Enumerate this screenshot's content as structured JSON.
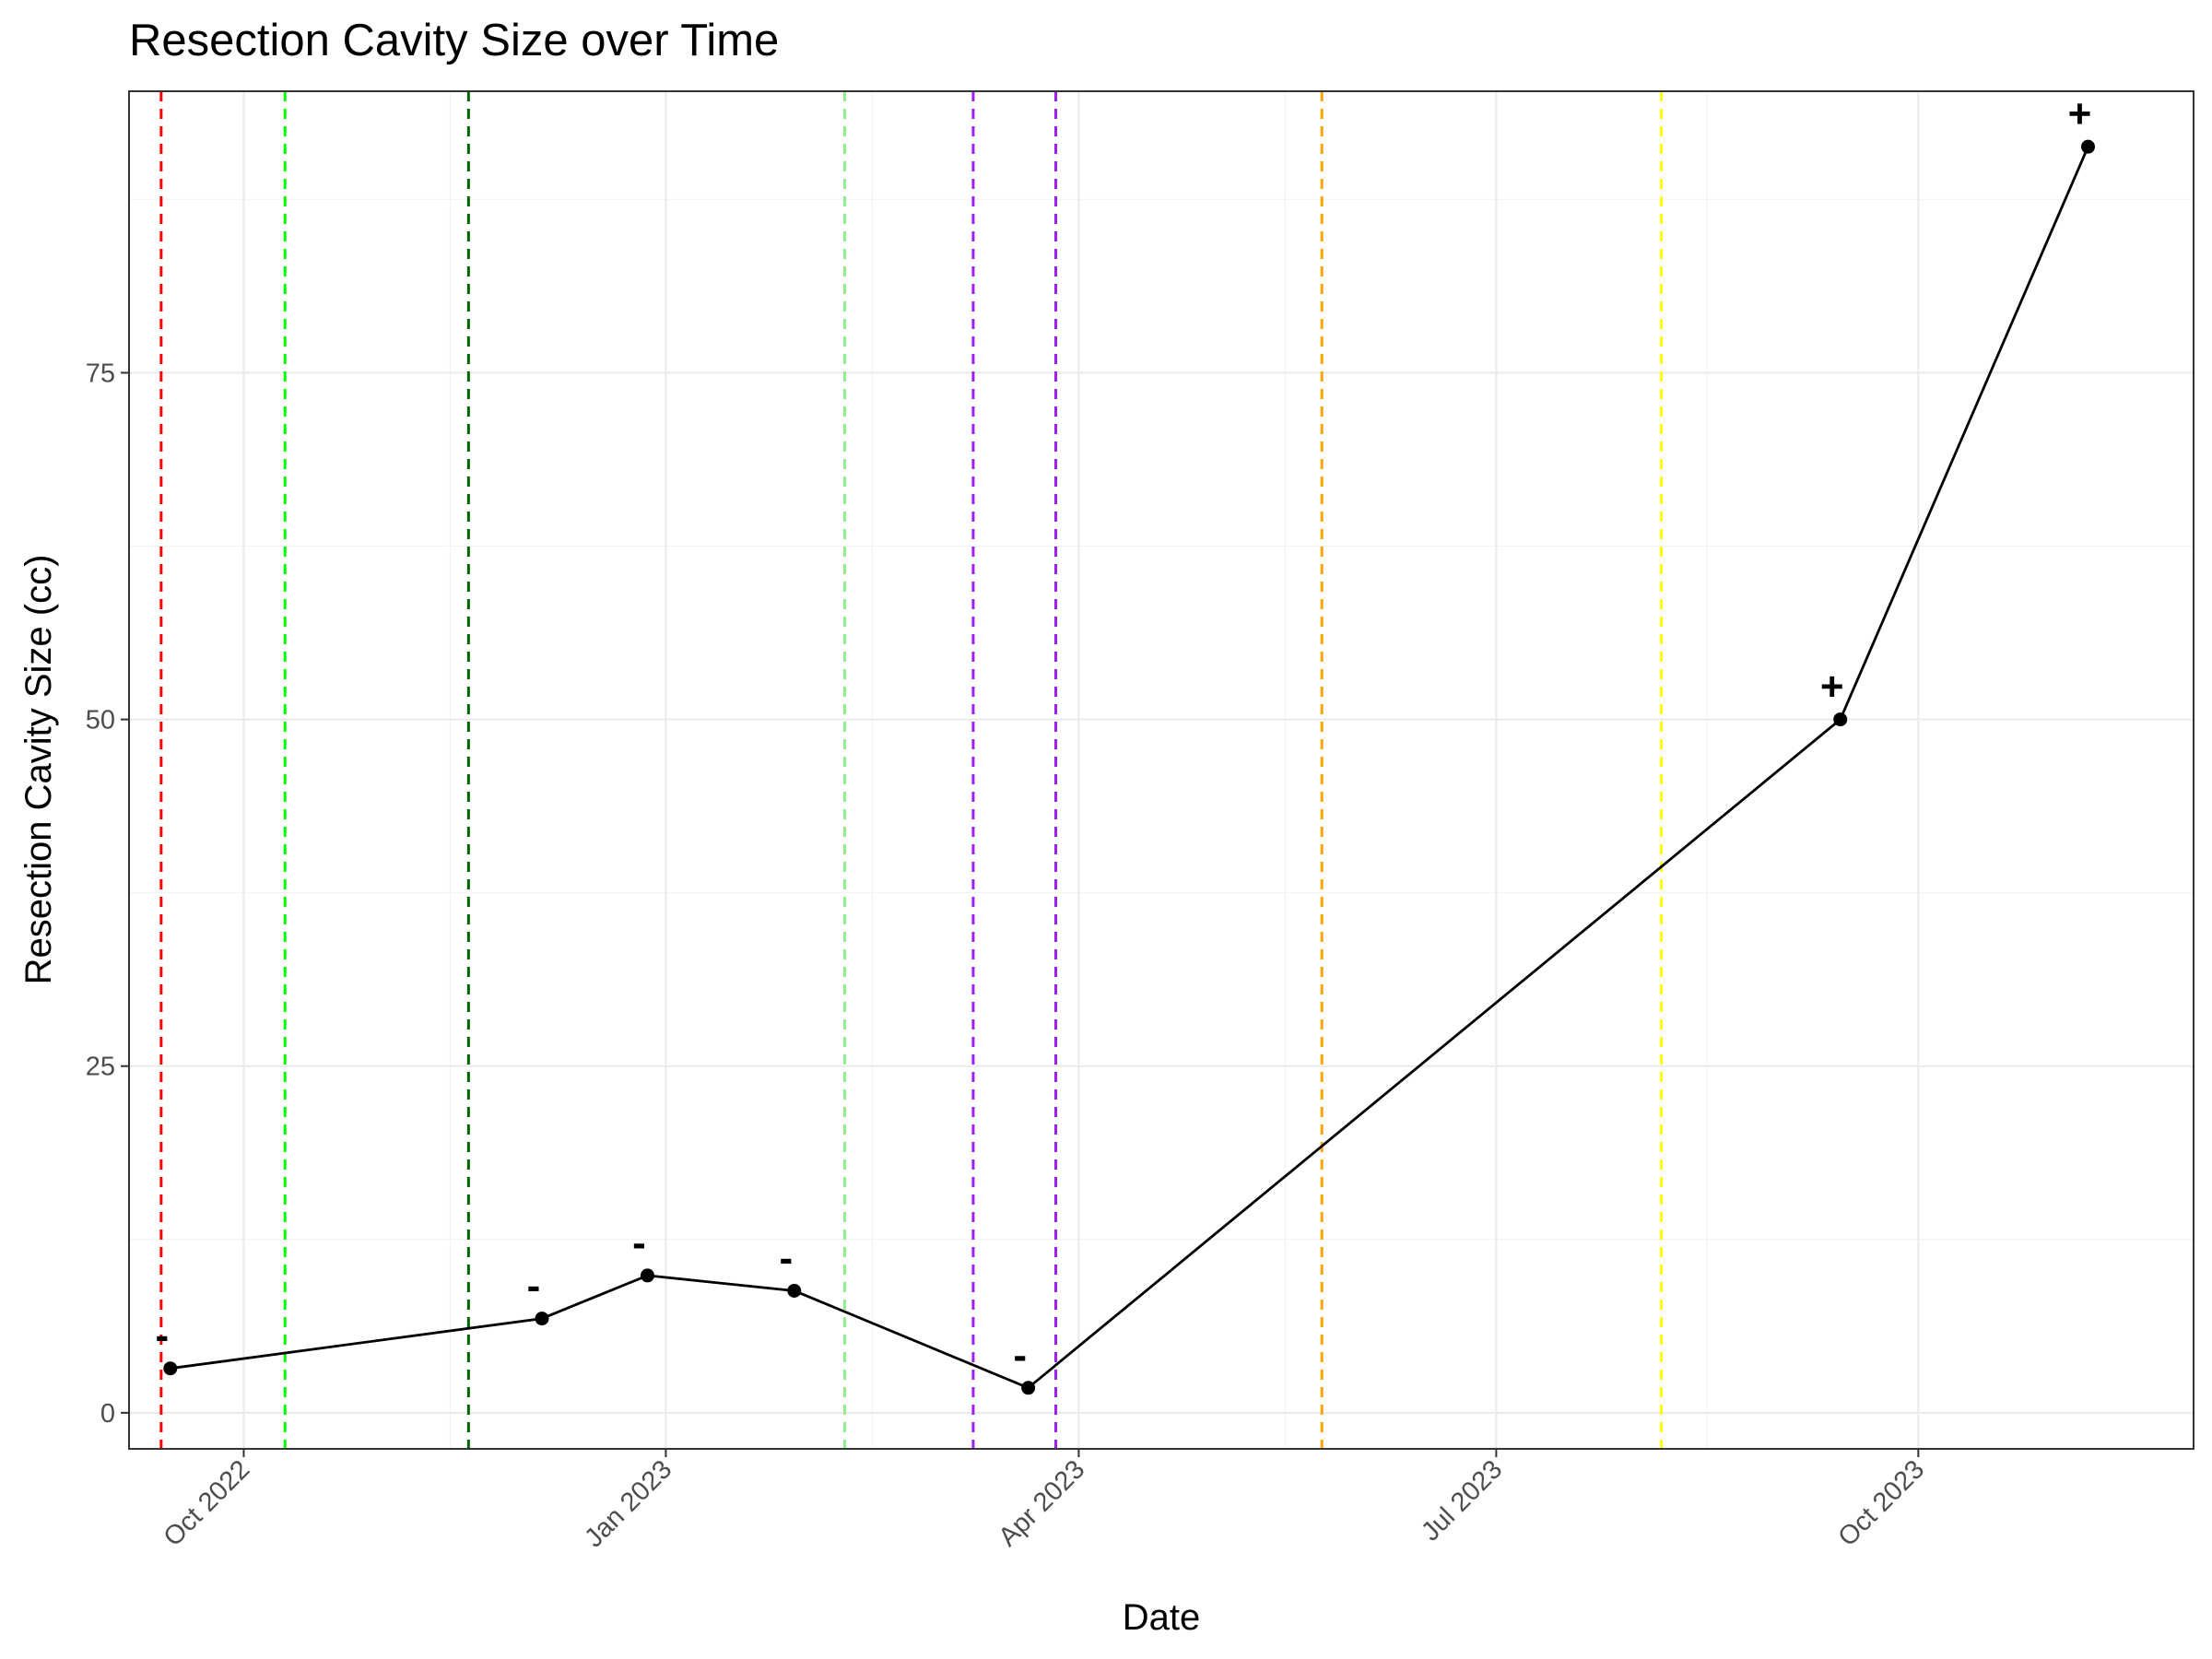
{
  "chart_data": {
    "type": "line",
    "title": "Resection Cavity Size over Time",
    "xlabel": "Date",
    "ylabel": "Resection Cavity Size (cc)",
    "x_type": "date",
    "xlim": [
      "2022-09-06",
      "2023-11-30"
    ],
    "ylim": [
      -2.6,
      95.3
    ],
    "x_ticks": [
      {
        "date": "2022-10-01",
        "label": "Oct 2022"
      },
      {
        "date": "2023-01-01",
        "label": "Jan 2023"
      },
      {
        "date": "2023-04-01",
        "label": "Apr 2023"
      },
      {
        "date": "2023-07-01",
        "label": "Jul 2023"
      },
      {
        "date": "2023-10-01",
        "label": "Oct 2023"
      }
    ],
    "x_minor_ticks": [
      "2022-11-15",
      "2023-02-15",
      "2023-05-16",
      "2023-08-16"
    ],
    "y_ticks": [
      0,
      25,
      50,
      75
    ],
    "y_minor_ticks": [
      12.5,
      37.5,
      62.5,
      87.5
    ],
    "grid": true,
    "series": [
      {
        "color": "#000000",
        "points": [
          {
            "date": "2022-09-15",
            "value": 3.2,
            "label": "-"
          },
          {
            "date": "2022-12-05",
            "value": 6.8,
            "label": "-"
          },
          {
            "date": "2022-12-28",
            "value": 9.9,
            "label": "-"
          },
          {
            "date": "2023-01-29",
            "value": 8.8,
            "label": "-"
          },
          {
            "date": "2023-03-21",
            "value": 1.8,
            "label": "-"
          },
          {
            "date": "2023-09-14",
            "value": 50.0,
            "label": "+"
          },
          {
            "date": "2023-11-07",
            "value": 91.3,
            "label": "+"
          }
        ]
      }
    ],
    "vertical_lines": [
      {
        "date": "2022-09-13",
        "color": "#ff0000"
      },
      {
        "date": "2022-10-10",
        "color": "#00ff00"
      },
      {
        "date": "2022-11-19",
        "color": "#006400"
      },
      {
        "date": "2023-02-09",
        "color": "#90ee90"
      },
      {
        "date": "2023-03-09",
        "color": "#a020f0"
      },
      {
        "date": "2023-03-27",
        "color": "#a020f0"
      },
      {
        "date": "2023-05-24",
        "color": "#ffa500"
      },
      {
        "date": "2023-08-06",
        "color": "#ffff00"
      }
    ]
  }
}
